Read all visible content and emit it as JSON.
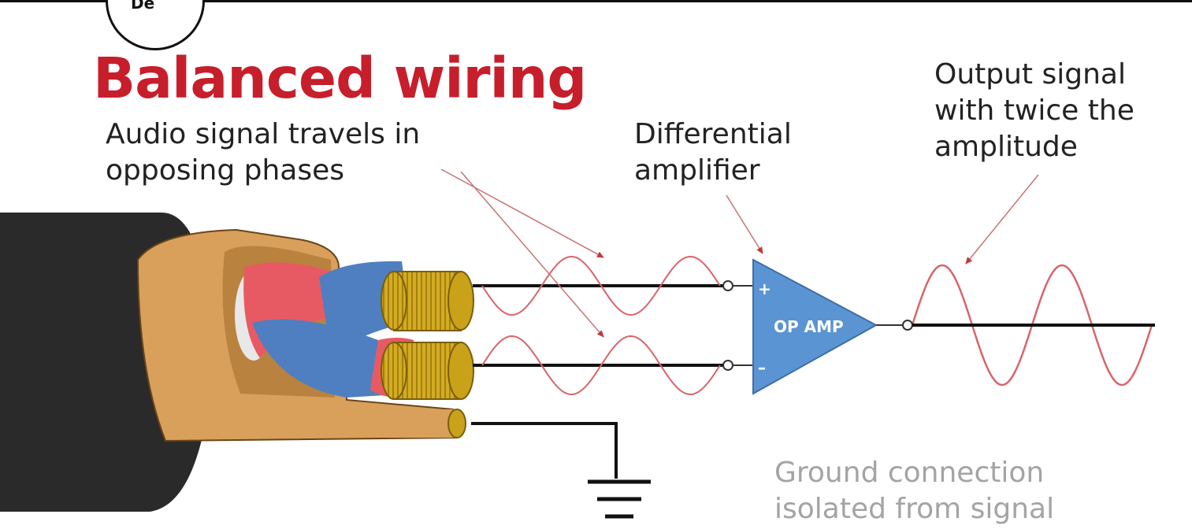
{
  "badge": {
    "text": "De"
  },
  "title": "Balanced wiring",
  "labels": {
    "audio_line1": "Audio signal travels in",
    "audio_line2": "opposing phases",
    "diff_line1": "Differential",
    "diff_line2": "amplifier",
    "output_line1": "Output signal",
    "output_line2": "with twice the",
    "output_line3": "amplitude",
    "ground_line1": "Ground connection",
    "ground_line2": "isolated from signal"
  },
  "amplifier": {
    "text": "OP AMP",
    "plus": "+",
    "minus": "–"
  },
  "colors": {
    "title": "#c71e2b",
    "cable_jacket": "#2a2a2a",
    "shield": "#d9a05b",
    "wire_red": "#e85a63",
    "wire_blue": "#4f7fc0",
    "conductor": "#c9a21a",
    "waveform": "#d9646a",
    "opamp": "#5b94d3",
    "pointer": "#c87474",
    "ground_text": "#a4a4a4"
  }
}
